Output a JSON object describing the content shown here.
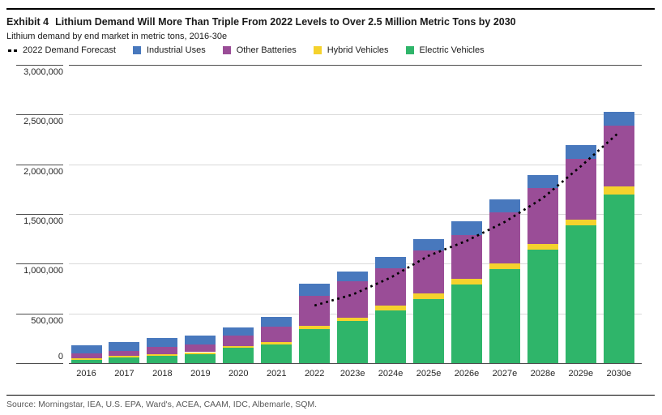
{
  "header": {
    "exhibit_label": "Exhibit 4",
    "title": "Lithium Demand Will More Than Triple From 2022 Levels to Over 2.5 Million Metric Tons by 2030",
    "subtitle": "Lithium demand by end market in metric tons, 2016-30e"
  },
  "footer": {
    "source": "Source: Morningstar, IEA, U.S. EPA, Ward's, ACEA, CAAM, IDC, Albemarle, SQM."
  },
  "colors": {
    "electric_vehicles": "#2fb56a",
    "hybrid_vehicles": "#f5d22d",
    "other_batteries": "#9a4d97",
    "industrial_uses": "#4878bd",
    "forecast_line": "#000000",
    "gridline": "#d9d9d9",
    "axis": "#4d4d4d"
  },
  "chart_data": {
    "type": "bar",
    "stacked": true,
    "title": "Lithium Demand Will More Than Triple From 2022 Levels to Over 2.5 Million Metric Tons by 2030",
    "subtitle": "Lithium demand by end market in metric tons, 2016-30e",
    "xlabel": "",
    "ylabel": "metric tons",
    "ylim": [
      0,
      3000000
    ],
    "y_tick_step": 500000,
    "grid": true,
    "legend_position": "top",
    "categories": [
      "2016",
      "2017",
      "2018",
      "2019",
      "2020",
      "2021",
      "2022",
      "2023e",
      "2024e",
      "2025e",
      "2026e",
      "2027e",
      "2028e",
      "2029e",
      "2030e"
    ],
    "series": [
      {
        "name": "Electric Vehicles",
        "color": "#2fb56a",
        "values": [
          35000,
          55000,
          70000,
          90000,
          155000,
          190000,
          345000,
          420000,
          530000,
          645000,
          790000,
          945000,
          1140000,
          1385000,
          1695000
        ]
      },
      {
        "name": "Hybrid Vehicles",
        "color": "#f5d22d",
        "values": [
          15000,
          15000,
          20000,
          20000,
          15000,
          25000,
          30000,
          35000,
          45000,
          55000,
          55000,
          55000,
          60000,
          60000,
          85000
        ]
      },
      {
        "name": "Other Batteries",
        "color": "#9a4d97",
        "values": [
          45000,
          55000,
          70000,
          75000,
          105000,
          150000,
          305000,
          365000,
          380000,
          430000,
          445000,
          520000,
          560000,
          610000,
          605000
        ]
      },
      {
        "name": "Industrial Uses",
        "color": "#4878bd",
        "values": [
          85000,
          85000,
          95000,
          95000,
          80000,
          100000,
          120000,
          105000,
          115000,
          120000,
          135000,
          130000,
          130000,
          135000,
          140000
        ]
      }
    ],
    "line_series": {
      "name": "2022 Demand Forecast",
      "style": "dotted",
      "color": "#000000",
      "x": [
        "2022",
        "2023e",
        "2024e",
        "2025e",
        "2026e",
        "2027e",
        "2028e",
        "2029e",
        "2030e"
      ],
      "values": [
        580000,
        690000,
        860000,
        1080000,
        1230000,
        1420000,
        1660000,
        1980000,
        2320000
      ]
    }
  }
}
